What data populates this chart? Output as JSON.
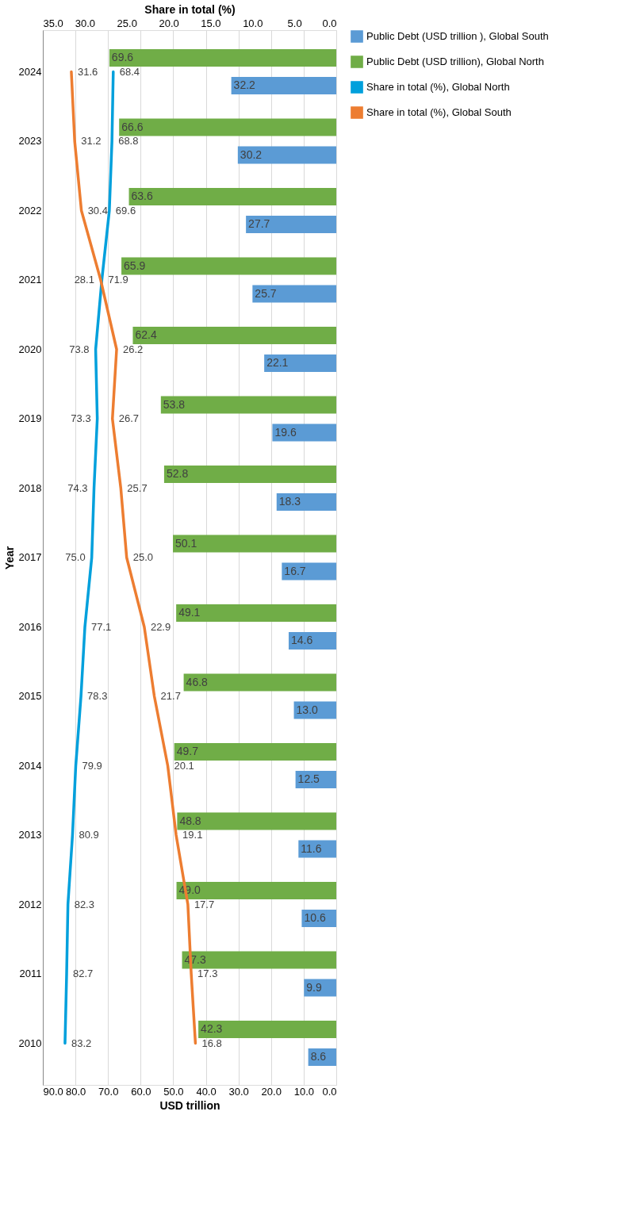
{
  "chart_data": {
    "type": "bar",
    "orientation": "horizontal",
    "xlabel": "USD trillion",
    "x2label": "Share in total (%)",
    "ylabel": "Year",
    "categories": [
      "2024",
      "2023",
      "2022",
      "2021",
      "2020",
      "2019",
      "2018",
      "2017",
      "2016",
      "2015",
      "2014",
      "2013",
      "2012",
      "2011",
      "2010"
    ],
    "xlim": [
      90,
      0
    ],
    "xticks": [
      {
        "value": 90,
        "label": "90.0"
      },
      {
        "value": 80,
        "label": "80.0"
      },
      {
        "value": 70,
        "label": "70.0"
      },
      {
        "value": 60,
        "label": "60.0"
      },
      {
        "value": 50,
        "label": "50.0"
      },
      {
        "value": 40,
        "label": "40.0"
      },
      {
        "value": 30,
        "label": "30.0"
      },
      {
        "value": 20,
        "label": "20.0"
      },
      {
        "value": 10,
        "label": "10.0"
      },
      {
        "value": 0,
        "label": "0.0"
      }
    ],
    "x2lim": [
      35,
      0
    ],
    "x2ticks": [
      {
        "value": 35,
        "label": "35.0"
      },
      {
        "value": 30,
        "label": "30.0"
      },
      {
        "value": 25,
        "label": "25.0"
      },
      {
        "value": 20,
        "label": "20.0"
      },
      {
        "value": 15,
        "label": "15.0"
      },
      {
        "value": 10,
        "label": "10.0"
      },
      {
        "value": 5,
        "label": "5.0"
      },
      {
        "value": 0,
        "label": "0.0"
      }
    ],
    "grid": "x",
    "legend": "right",
    "data_labels": true,
    "series": [
      {
        "name": "Public Debt (USD trillion ), Global South",
        "type": "bar",
        "color": "#5b9bd5",
        "values": [
          32.2,
          30.2,
          27.7,
          25.7,
          22.1,
          19.6,
          18.3,
          16.7,
          14.6,
          13.0,
          12.5,
          11.6,
          10.6,
          9.9,
          8.6
        ],
        "value_labels": [
          "32.2",
          "30.2",
          "27.7",
          "25.7",
          "22.1",
          "19.6",
          "18.3",
          "16.7",
          "14.6",
          "13.0",
          "12.5",
          "11.6",
          "10.6",
          "9.9",
          "8.6"
        ]
      },
      {
        "name": "Public Debt (USD trillion), Global North",
        "type": "bar",
        "color": "#70ad47",
        "values": [
          69.6,
          66.6,
          63.6,
          65.9,
          62.4,
          53.8,
          52.8,
          50.1,
          49.1,
          46.8,
          49.7,
          48.8,
          49.0,
          47.3,
          42.3
        ],
        "value_labels": [
          "69.6",
          "66.6",
          "63.6",
          "65.9",
          "62.4",
          "53.8",
          "52.8",
          "50.1",
          "49.1",
          "46.8",
          "49.7",
          "48.8",
          "49.0",
          "47.3",
          "42.3"
        ]
      },
      {
        "name": "Share in total (%), Global North",
        "type": "line",
        "color": "#00a0dc",
        "values": [
          68.4,
          68.8,
          69.6,
          71.9,
          73.8,
          73.3,
          74.3,
          75.0,
          77.1,
          78.3,
          79.9,
          80.9,
          82.3,
          82.7,
          83.2
        ],
        "value_labels": [
          "68.4",
          "68.8",
          "69.6",
          "71.9",
          "73.8",
          "73.3",
          "74.3",
          "75.0",
          "77.1",
          "78.3",
          "79.9",
          "80.9",
          "82.3",
          "82.7",
          "83.2"
        ]
      },
      {
        "name": "Share in total (%), Global South",
        "type": "line",
        "axis": "x2",
        "color": "#ed7d31",
        "values": [
          31.6,
          31.2,
          30.4,
          28.1,
          26.2,
          26.7,
          25.7,
          25.0,
          22.9,
          21.7,
          20.1,
          19.1,
          17.7,
          17.3,
          16.8
        ],
        "value_labels": [
          "31.6",
          "31.2",
          "30.4",
          "28.1",
          "26.2",
          "26.7",
          "25.7",
          "25.0",
          "22.9",
          "21.7",
          "20.1",
          "19.1",
          "17.7",
          "17.3",
          "16.8"
        ]
      }
    ]
  }
}
